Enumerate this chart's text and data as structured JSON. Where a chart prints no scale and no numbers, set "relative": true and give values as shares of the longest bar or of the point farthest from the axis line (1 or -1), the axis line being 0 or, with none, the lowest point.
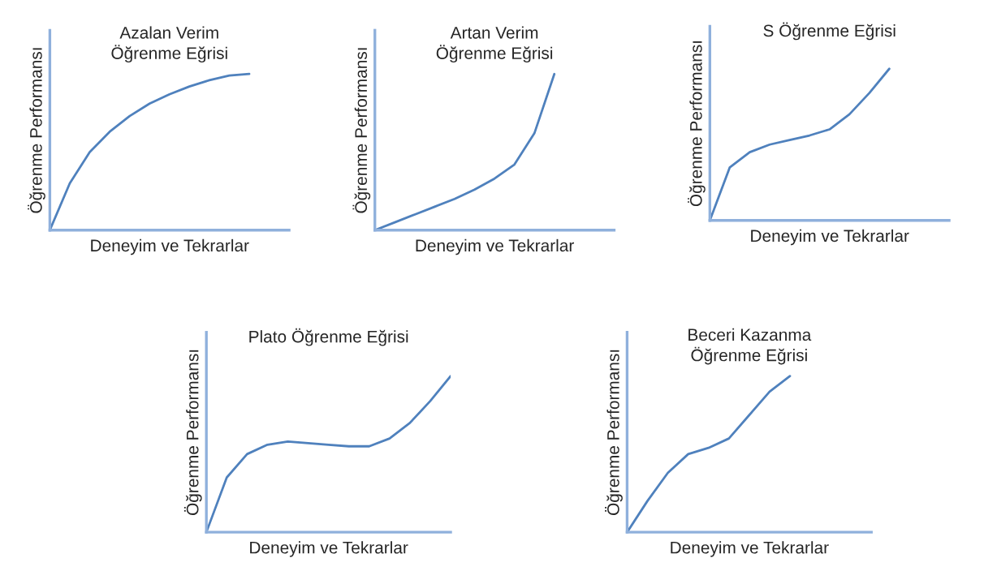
{
  "chart_data": [
    {
      "type": "line",
      "title": "Azalan Verim\nÖğrenme Eğrisi",
      "xlabel": "Deneyim ve Tekrarlar",
      "ylabel": "Öğrenme Performansı",
      "relative": true,
      "categories": [
        null,
        null,
        null,
        null,
        null,
        null,
        null,
        null,
        null,
        null,
        null,
        null,
        null
      ],
      "series": [
        {
          "color": "#4f81bd",
          "values": [
            0,
            0.3,
            0.5,
            0.63,
            0.73,
            0.81,
            0.87,
            0.92,
            0.96,
            0.99,
            1.0,
            null,
            null
          ]
        }
      ]
    },
    {
      "type": "line",
      "title": "Artan Verim\nÖğrenme Eğrisi",
      "xlabel": "Deneyim ve Tekrarlar",
      "ylabel": "Öğrenme Performansı",
      "relative": true,
      "categories": [
        null,
        null,
        null,
        null,
        null,
        null,
        null,
        null,
        null,
        null,
        null,
        null,
        null
      ],
      "series": [
        {
          "color": "#4f81bd",
          "values": [
            0,
            0.05,
            0.1,
            0.15,
            0.2,
            0.26,
            0.33,
            0.42,
            0.62,
            1.0,
            null,
            null,
            null
          ]
        }
      ]
    },
    {
      "type": "line",
      "title": "S Öğrenme Eğrisi",
      "xlabel": "Deneyim ve Tekrarlar",
      "ylabel": "Öğrenme Performansı",
      "relative": true,
      "categories": [
        null,
        null,
        null,
        null,
        null,
        null,
        null,
        null,
        null,
        null,
        null,
        null,
        null
      ],
      "series": [
        {
          "color": "#4f81bd",
          "values": [
            0,
            0.35,
            0.45,
            0.5,
            0.53,
            0.56,
            0.6,
            0.7,
            0.84,
            1.0,
            null,
            null,
            null
          ]
        }
      ]
    },
    {
      "type": "line",
      "title": "Plato Öğrenme Eğrisi",
      "xlabel": "Deneyim ve Tekrarlar",
      "ylabel": "Öğrenme Performansı",
      "relative": true,
      "categories": [
        null,
        null,
        null,
        null,
        null,
        null,
        null,
        null,
        null,
        null,
        null,
        null,
        null
      ],
      "series": [
        {
          "color": "#4f81bd",
          "values": [
            0,
            0.35,
            0.5,
            0.56,
            0.58,
            0.57,
            0.56,
            0.55,
            0.55,
            0.6,
            0.7,
            0.84,
            1.0
          ]
        }
      ]
    },
    {
      "type": "line",
      "title": "Beceri Kazanma\nÖğrenme Eğrisi",
      "xlabel": "Deneyim ve Tekrarlar",
      "ylabel": "Öğrenme Performansı",
      "relative": true,
      "categories": [
        null,
        null,
        null,
        null,
        null,
        null,
        null,
        null,
        null,
        null,
        null,
        null,
        null
      ],
      "series": [
        {
          "color": "#4f81bd",
          "values": [
            0,
            0.2,
            0.38,
            0.5,
            0.54,
            0.6,
            0.75,
            0.9,
            1.0,
            null,
            null,
            null,
            null
          ]
        }
      ]
    }
  ]
}
